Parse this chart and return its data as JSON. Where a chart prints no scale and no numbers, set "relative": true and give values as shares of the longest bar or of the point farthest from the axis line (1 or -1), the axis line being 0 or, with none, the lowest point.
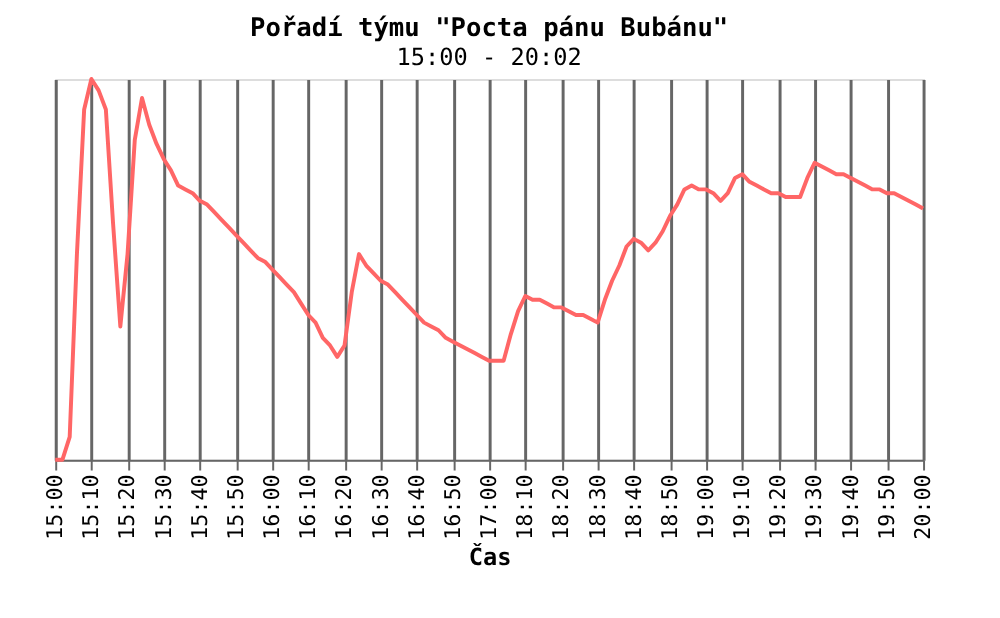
{
  "chart_data": {
    "type": "line",
    "title": "Pořadí týmu \"Pocta pánu Bubánu\"",
    "subtitle": "15:00 - 20:02",
    "xlabel": "Čas",
    "relative": true,
    "grid": "x",
    "legend": false,
    "marker": "none",
    "line_style": "solid",
    "categories": [
      "15:00",
      null,
      null,
      null,
      null,
      "15:10",
      null,
      null,
      null,
      null,
      "15:20",
      null,
      null,
      null,
      null,
      "15:30",
      null,
      null,
      null,
      null,
      "15:40",
      null,
      null,
      null,
      null,
      "15:50",
      null,
      null,
      null,
      null,
      "16:00",
      null,
      null,
      null,
      null,
      "16:10",
      null,
      null,
      null,
      null,
      "16:20",
      null,
      null,
      null,
      null,
      "16:30",
      null,
      null,
      null,
      null,
      "16:40",
      null,
      null,
      null,
      null,
      "16:50",
      null,
      null,
      null,
      null,
      "17:00",
      null,
      null,
      null,
      null,
      "18:10",
      null,
      null,
      null,
      null,
      "18:20",
      null,
      null,
      null,
      null,
      "18:30",
      null,
      null,
      null,
      null,
      "18:40",
      null,
      null,
      null,
      null,
      "18:50",
      null,
      null,
      null,
      null,
      "19:00",
      null,
      null,
      null,
      null,
      "19:10",
      null,
      null,
      null,
      null,
      "19:20",
      null,
      null,
      null,
      null,
      "19:30",
      null,
      null,
      null,
      null,
      "19:40",
      null,
      null,
      null,
      null,
      "19:50",
      null,
      null,
      null,
      null,
      "20:00"
    ],
    "series": [
      {
        "color": "#ff6666",
        "values": [
          0,
          0,
          0.06,
          0.54,
          0.92,
          1,
          0.97,
          0.92,
          0.62,
          0.35,
          0.54,
          0.84,
          0.95,
          0.88,
          0.83,
          0.79,
          0.76,
          0.72,
          0.71,
          0.7,
          0.68,
          0.67,
          0.65,
          0.63,
          0.61,
          0.59,
          0.57,
          0.55,
          0.53,
          0.52,
          0.5,
          0.48,
          0.46,
          0.44,
          0.41,
          0.38,
          0.36,
          0.32,
          0.3,
          0.27,
          0.3,
          0.44,
          0.54,
          0.51,
          0.49,
          0.47,
          0.46,
          0.44,
          0.42,
          0.4,
          0.38,
          0.36,
          0.35,
          0.34,
          0.32,
          0.31,
          0.3,
          0.29,
          0.28,
          0.27,
          0.26,
          0.26,
          0.26,
          0.33,
          0.39,
          0.43,
          0.42,
          0.42,
          0.41,
          0.4,
          0.4,
          0.39,
          0.38,
          0.38,
          0.37,
          0.36,
          0.42,
          0.47,
          0.51,
          0.56,
          0.58,
          0.57,
          0.55,
          0.57,
          0.6,
          0.64,
          0.67,
          0.71,
          0.72,
          0.71,
          0.71,
          0.7,
          0.68,
          0.7,
          0.74,
          0.75,
          0.73,
          0.72,
          0.71,
          0.7,
          0.7,
          0.69,
          0.69,
          0.69,
          0.74,
          0.78,
          0.77,
          0.76,
          0.75,
          0.75,
          0.74,
          0.73,
          0.72,
          0.71,
          0.71,
          0.7,
          0.7,
          0.69,
          0.68,
          0.67,
          0.66
        ]
      }
    ]
  }
}
